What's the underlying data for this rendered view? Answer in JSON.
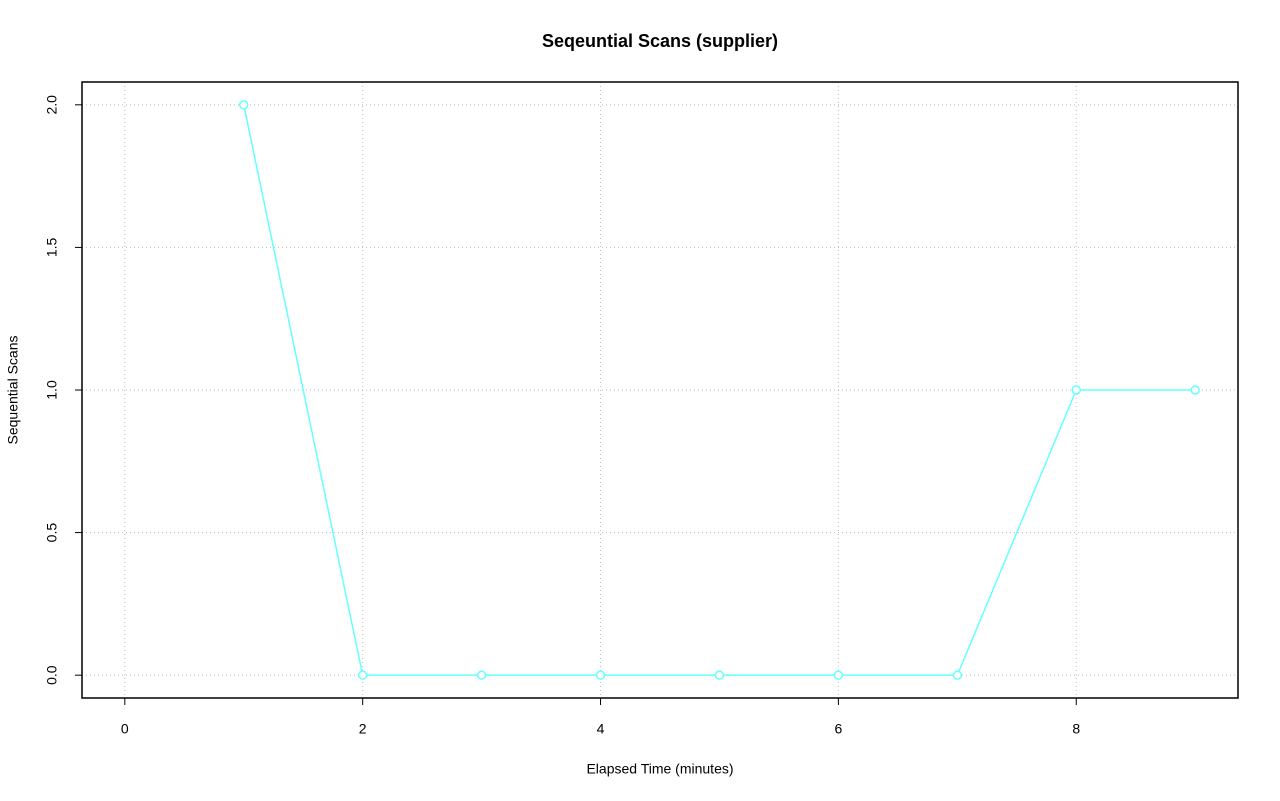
{
  "chart_data": {
    "type": "line",
    "title": "Seqeuntial Scans (supplier)",
    "x_label": "Elapsed Time (minutes)",
    "y_label": "Sequential Scans",
    "x": [
      1,
      2,
      3,
      4,
      5,
      6,
      7,
      8,
      9
    ],
    "series": [
      {
        "name": "supplier",
        "color": "#66ffff",
        "values": [
          2,
          0,
          0,
          0,
          0,
          0,
          0,
          1,
          1
        ]
      }
    ],
    "xlim": [
      -0.36,
      9.36
    ],
    "xticks": [
      0,
      2,
      4,
      6,
      8
    ],
    "ylim": [
      -0.08,
      2.08
    ],
    "yticks": [
      {
        "value": 0,
        "label": "0.0"
      },
      {
        "value": 0.5,
        "label": "0.5"
      },
      {
        "value": 1,
        "label": "1.0"
      },
      {
        "value": 1.5,
        "label": "1.5"
      },
      {
        "value": 2,
        "label": "2.0"
      }
    ],
    "grid": true,
    "markers": true
  }
}
